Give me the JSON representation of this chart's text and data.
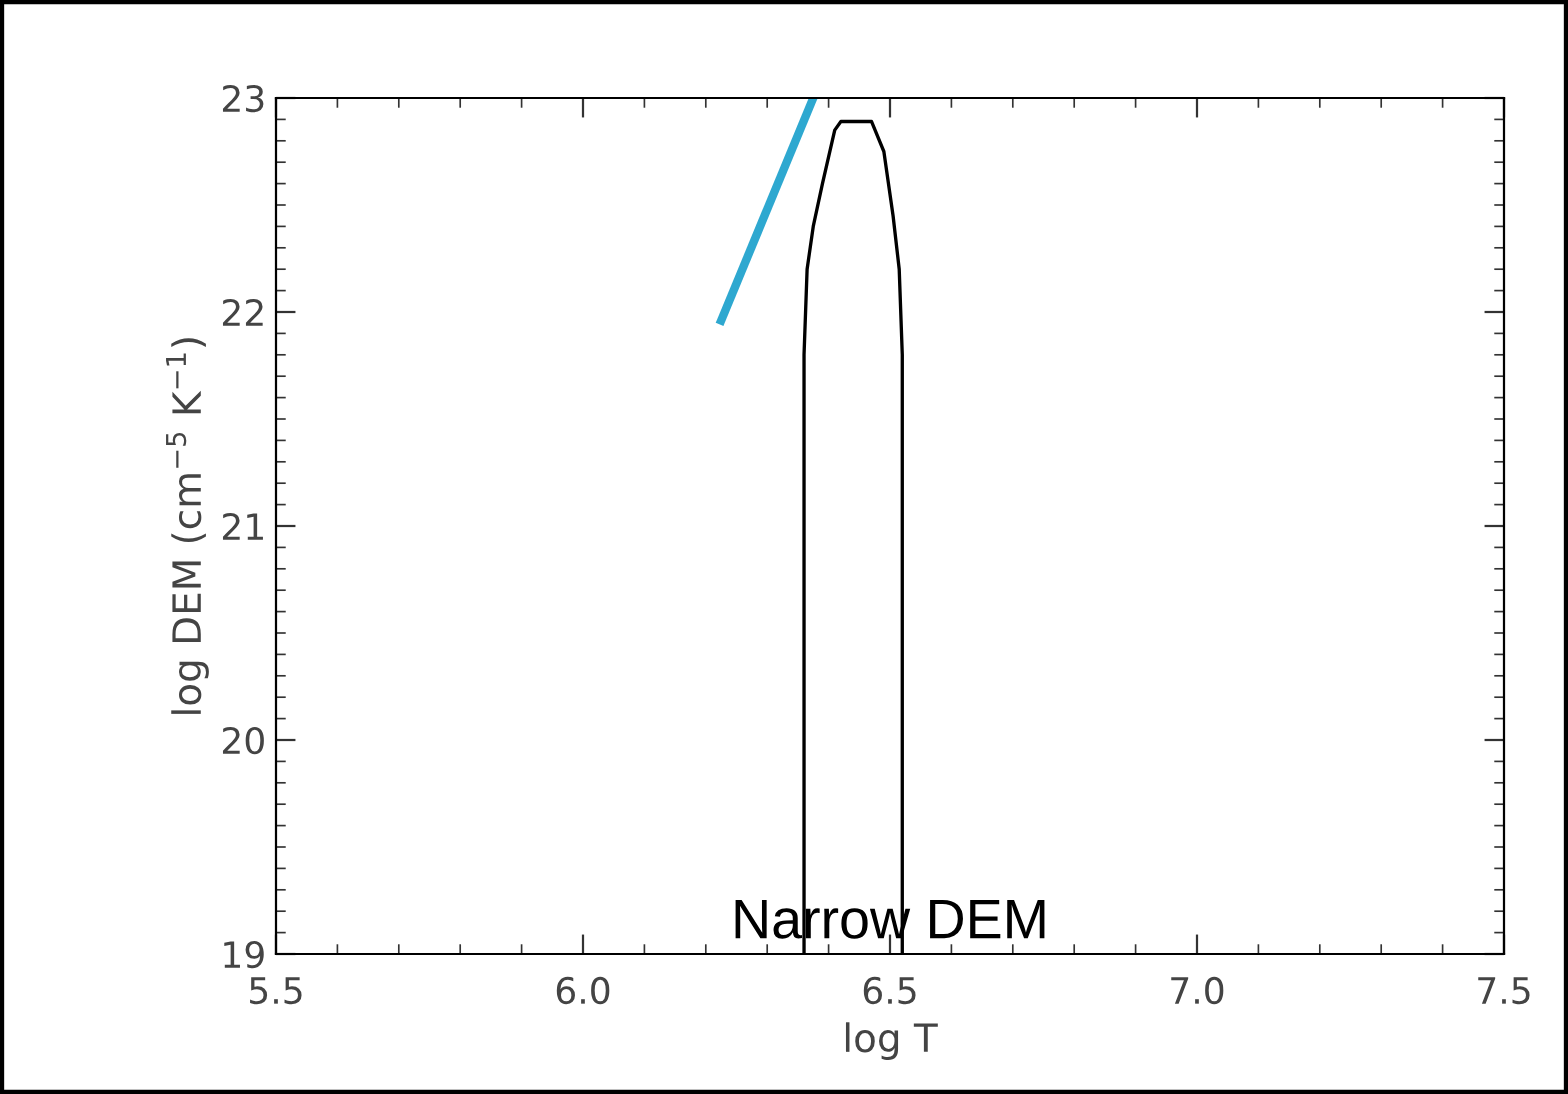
{
  "chart_data": {
    "type": "line",
    "xlabel": "log T",
    "ylabel": "log DEM (cm$^{−5}$ K$^{−1}$)",
    "xlim": [
      5.5,
      7.5
    ],
    "xticks": [
      {
        "value": 5.5,
        "label": "5.5"
      },
      {
        "value": 6.0,
        "label": "6.0"
      },
      {
        "value": 6.5,
        "label": "6.5"
      },
      {
        "value": 7.0,
        "label": "7.0"
      },
      {
        "value": 7.5,
        "label": "7.5"
      }
    ],
    "ylim": [
      19,
      23
    ],
    "yticks": [
      19,
      20,
      21,
      22,
      23
    ],
    "grid": false,
    "series": [
      {
        "color": "#000000",
        "x": [
          6.36,
          6.36,
          6.365,
          6.375,
          6.39,
          6.41,
          6.42,
          6.47,
          6.49,
          6.505,
          6.515,
          6.52,
          6.52
        ],
        "values": [
          19,
          21.8,
          22.2,
          22.4,
          22.6,
          22.85,
          22.89,
          22.89,
          22.75,
          22.45,
          22.2,
          21.8,
          19
        ]
      },
      {
        "color": "#2ea8d0",
        "x": [
          6.225,
          6.375
        ],
        "values": [
          21.96,
          23.0
        ]
      }
    ],
    "annotations": [
      "Narrow DEM"
    ]
  }
}
